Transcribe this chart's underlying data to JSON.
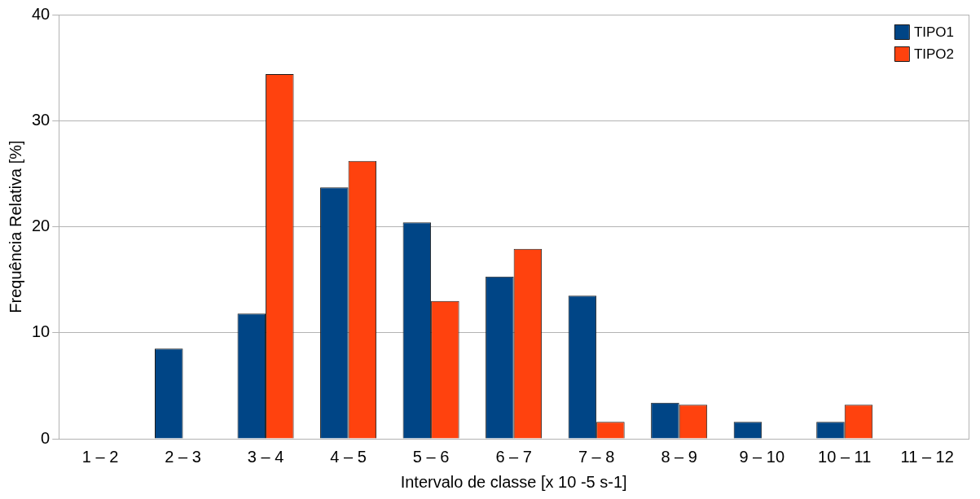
{
  "chart_data": {
    "type": "bar",
    "xlabel": "Intervalo de classe [x 10 -5 s-1]",
    "ylabel": "Frequência Relativa [%]",
    "categories": [
      "1 – 2",
      "2 – 3",
      "3 – 4",
      "4 – 5",
      "5 – 6",
      "6 – 7",
      "7 – 8",
      "8 – 9",
      "9 – 10",
      "10 – 11",
      "11 – 12"
    ],
    "series": [
      {
        "name": "TIPO1",
        "color": "#004586",
        "values": [
          0,
          8.5,
          11.8,
          23.7,
          20.4,
          15.3,
          13.5,
          3.4,
          1.6,
          1.6,
          0
        ]
      },
      {
        "name": "TIPO2",
        "color": "#ff420e",
        "values": [
          0,
          0,
          34.4,
          26.2,
          13.0,
          17.9,
          1.6,
          3.2,
          0,
          3.2,
          0
        ]
      }
    ],
    "ylim": [
      0,
      40
    ],
    "yticks": [
      0,
      10,
      20,
      30,
      40
    ],
    "grid": "y",
    "legend": "top right"
  }
}
